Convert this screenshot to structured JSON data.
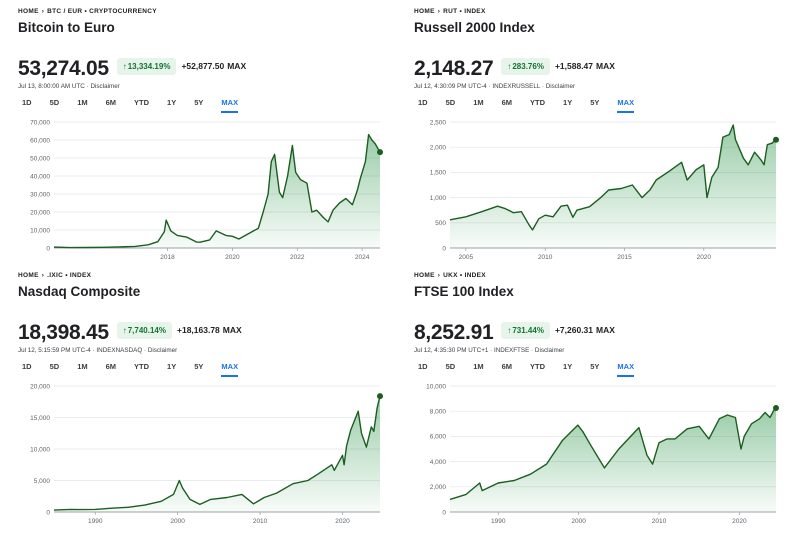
{
  "accent_color": "#1e8e3e",
  "chip_bg": "#e6f4ea",
  "chart_data": [
    {
      "type": "area",
      "breadcrumb": [
        "HOME",
        "BTC / EUR • CRYPTOCURRENCY"
      ],
      "title": "Bitcoin to Euro",
      "price": "53,274.05",
      "pct_change": "13,334.19%",
      "abs_change": "+52,877.50",
      "period_label": "MAX",
      "timestamp": "Jul 13, 8:00:00 AM UTC · Disclaimer",
      "ranges": [
        "1D",
        "5D",
        "1M",
        "6M",
        "YTD",
        "1Y",
        "5Y",
        "MAX"
      ],
      "active_range": "MAX",
      "xlim": [
        2014.5,
        2024.55
      ],
      "ylim": [
        0,
        70000
      ],
      "yticks": [
        0,
        10000,
        20000,
        30000,
        40000,
        50000,
        60000,
        70000
      ],
      "ytick_labels": [
        "0",
        "10,000",
        "20,000",
        "30,000",
        "40,000",
        "50,000",
        "60,000",
        "70,000"
      ],
      "xticks": [
        2018,
        2020,
        2022,
        2024
      ],
      "xtick_labels": [
        "2018",
        "2020",
        "2022",
        "2024"
      ],
      "x": [
        2014.5,
        2015.0,
        2015.5,
        2016.0,
        2016.5,
        2017.0,
        2017.4,
        2017.7,
        2017.9,
        2017.96,
        2018.1,
        2018.3,
        2018.6,
        2018.9,
        2019.0,
        2019.3,
        2019.5,
        2019.8,
        2020.0,
        2020.2,
        2020.5,
        2020.8,
        2020.95,
        2021.1,
        2021.2,
        2021.3,
        2021.45,
        2021.55,
        2021.7,
        2021.85,
        2021.95,
        2022.1,
        2022.3,
        2022.45,
        2022.6,
        2022.8,
        2022.95,
        2023.1,
        2023.3,
        2023.5,
        2023.7,
        2023.85,
        2023.95,
        2024.1,
        2024.2,
        2024.3,
        2024.4,
        2024.55
      ],
      "y": [
        500,
        250,
        300,
        400,
        600,
        900,
        1800,
        3500,
        9000,
        15500,
        9500,
        7000,
        6000,
        3300,
        3200,
        4500,
        9500,
        7000,
        6500,
        5000,
        8000,
        11000,
        20000,
        30000,
        48000,
        52000,
        31000,
        28000,
        40000,
        57000,
        42000,
        38000,
        36000,
        20000,
        21000,
        17000,
        14500,
        21000,
        25000,
        27500,
        24000,
        32000,
        39000,
        48000,
        63000,
        60000,
        58000,
        53274
      ]
    },
    {
      "type": "area",
      "breadcrumb": [
        "HOME",
        "RUT • INDEX"
      ],
      "title": "Russell 2000 Index",
      "price": "2,148.27",
      "pct_change": "283.76%",
      "abs_change": "+1,588.47",
      "period_label": "MAX",
      "timestamp": "Jul 12, 4:30:09 PM UTC-4 · INDEXRUSSELL · Disclaimer",
      "ranges": [
        "1D",
        "5D",
        "1M",
        "6M",
        "YTD",
        "1Y",
        "5Y",
        "MAX"
      ],
      "active_range": "MAX",
      "xlim": [
        2004.0,
        2024.55
      ],
      "ylim": [
        0,
        2500
      ],
      "yticks": [
        0,
        500,
        1000,
        1500,
        2000,
        2500
      ],
      "ytick_labels": [
        "0",
        "500",
        "1,000",
        "1,500",
        "2,000",
        "2,500"
      ],
      "xticks": [
        2005,
        2010,
        2015,
        2020
      ],
      "xtick_labels": [
        "2005",
        "2010",
        "2015",
        "2020"
      ],
      "x": [
        2004.0,
        2005.0,
        2006.0,
        2007.0,
        2007.5,
        2008.0,
        2008.5,
        2009.0,
        2009.2,
        2009.6,
        2010.0,
        2010.5,
        2011.0,
        2011.4,
        2011.75,
        2012.0,
        2012.8,
        2013.5,
        2014.0,
        2014.8,
        2015.5,
        2016.1,
        2016.6,
        2017.0,
        2017.8,
        2018.6,
        2018.95,
        2019.5,
        2020.0,
        2020.2,
        2020.5,
        2020.9,
        2021.2,
        2021.6,
        2021.85,
        2022.0,
        2022.5,
        2022.8,
        2023.2,
        2023.6,
        2023.8,
        2024.0,
        2024.3,
        2024.55
      ],
      "y": [
        560,
        620,
        720,
        830,
        780,
        700,
        720,
        450,
        360,
        580,
        650,
        620,
        830,
        850,
        610,
        750,
        820,
        1000,
        1150,
        1180,
        1250,
        1000,
        1150,
        1350,
        1520,
        1700,
        1350,
        1550,
        1650,
        1000,
        1400,
        1600,
        2200,
        2250,
        2440,
        2150,
        1780,
        1650,
        1900,
        1750,
        1650,
        2050,
        2080,
        2148
      ]
    },
    {
      "type": "area",
      "breadcrumb": [
        "HOME",
        ".IXIC • INDEX"
      ],
      "title": "Nasdaq Composite",
      "price": "18,398.45",
      "pct_change": "7,740.14%",
      "abs_change": "+18,163.78",
      "period_label": "MAX",
      "timestamp": "Jul 12, 5:15:59 PM UTC-4 · INDEXNASDAQ · Disclaimer",
      "ranges": [
        "1D",
        "5D",
        "1M",
        "6M",
        "YTD",
        "1Y",
        "5Y",
        "MAX"
      ],
      "active_range": "MAX",
      "xlim": [
        1985.0,
        2024.55
      ],
      "ylim": [
        0,
        20000
      ],
      "yticks": [
        0,
        5000,
        10000,
        15000,
        20000
      ],
      "ytick_labels": [
        "0",
        "5,000",
        "10,000",
        "15,000",
        "20,000"
      ],
      "xticks": [
        1990,
        2000,
        2010,
        2020
      ],
      "xtick_labels": [
        "1990",
        "2000",
        "2010",
        "2020"
      ],
      "x": [
        1985.0,
        1987.0,
        1988.0,
        1990.0,
        1992.0,
        1994.0,
        1996.0,
        1998.0,
        1999.5,
        2000.2,
        2000.6,
        2001.5,
        2002.7,
        2004.0,
        2006.0,
        2007.8,
        2009.2,
        2010.5,
        2012.0,
        2014.0,
        2015.8,
        2017.0,
        2018.7,
        2019.0,
        2020.0,
        2020.2,
        2020.5,
        2021.0,
        2021.9,
        2022.3,
        2022.9,
        2023.5,
        2023.8,
        2024.2,
        2024.55
      ],
      "y": [
        300,
        420,
        380,
        420,
        600,
        750,
        1100,
        1700,
        2800,
        5000,
        3800,
        2000,
        1200,
        2000,
        2300,
        2800,
        1300,
        2300,
        3000,
        4500,
        5000,
        6000,
        7500,
        6600,
        9000,
        7500,
        10500,
        13000,
        16000,
        12500,
        10300,
        13500,
        12800,
        16500,
        18398
      ]
    },
    {
      "type": "area",
      "breadcrumb": [
        "HOME",
        "UKX • INDEX"
      ],
      "title": "FTSE 100 Index",
      "price": "8,252.91",
      "pct_change": "731.44%",
      "abs_change": "+7,260.31",
      "period_label": "MAX",
      "timestamp": "Jul 12, 4:35:30 PM UTC+1 · INDEXFTSE · Disclaimer",
      "ranges": [
        "1D",
        "5D",
        "1M",
        "6M",
        "YTD",
        "1Y",
        "5Y",
        "MAX"
      ],
      "active_range": "MAX",
      "xlim": [
        1984.0,
        2024.55
      ],
      "ylim": [
        0,
        10000
      ],
      "yticks": [
        0,
        2000,
        4000,
        6000,
        8000,
        10000
      ],
      "ytick_labels": [
        "0",
        "2,000",
        "4,000",
        "6,000",
        "8,000",
        "10,000"
      ],
      "xticks": [
        1990,
        2000,
        2010,
        2020
      ],
      "xtick_labels": [
        "1990",
        "2000",
        "2010",
        "2020"
      ],
      "x": [
        1984.0,
        1986.0,
        1987.7,
        1988.0,
        1990.0,
        1992.0,
        1994.0,
        1996.0,
        1998.0,
        1999.9,
        2000.5,
        2001.5,
        2003.2,
        2005.0,
        2007.5,
        2008.5,
        2009.2,
        2010.0,
        2011.0,
        2012.0,
        2013.5,
        2015.0,
        2016.2,
        2017.5,
        2018.5,
        2019.5,
        2020.2,
        2020.6,
        2021.5,
        2022.5,
        2023.2,
        2023.8,
        2024.3,
        2024.55
      ],
      "y": [
        1000,
        1400,
        2300,
        1700,
        2300,
        2500,
        3000,
        3800,
        5700,
        6900,
        6400,
        5300,
        3500,
        5000,
        6700,
        4500,
        3800,
        5500,
        5800,
        5800,
        6600,
        6800,
        5800,
        7400,
        7700,
        7500,
        5000,
        6000,
        7000,
        7400,
        7900,
        7500,
        8100,
        8252
      ]
    }
  ]
}
